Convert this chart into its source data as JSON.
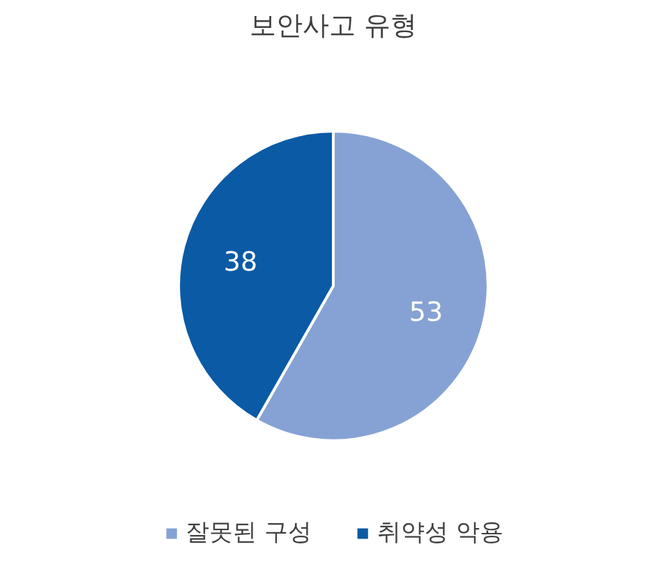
{
  "chart_data": {
    "type": "pie",
    "title": "보안사고 유형",
    "categories": [
      "잘못된 구성",
      "취약성 악용"
    ],
    "values": [
      53,
      38
    ],
    "colors": [
      "#86a2d4",
      "#0b5aa5"
    ],
    "data_labels": true,
    "legend": "bottom"
  }
}
